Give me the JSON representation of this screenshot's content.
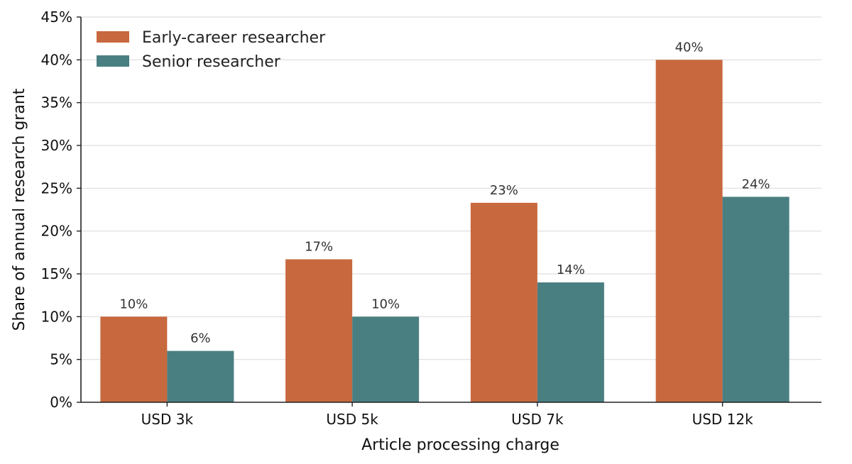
{
  "chart_data": {
    "type": "bar",
    "title": "",
    "xlabel": "Article processing charge",
    "ylabel": "Share of annual research grant",
    "categories": [
      "USD 3k",
      "USD 5k",
      "USD 7k",
      "USD 12k"
    ],
    "series": [
      {
        "name": "Early-career researcher",
        "values": [
          10,
          16.7,
          23.3,
          40
        ],
        "labels": [
          "10%",
          "17%",
          "23%",
          "40%"
        ],
        "color": "#c8683e"
      },
      {
        "name": "Senior researcher",
        "values": [
          6,
          10,
          14,
          24
        ],
        "labels": [
          "6%",
          "10%",
          "14%",
          "24%"
        ],
        "color": "#4a7f82"
      }
    ],
    "ylim": [
      0,
      45
    ],
    "yticks": [
      0,
      5,
      10,
      15,
      20,
      25,
      30,
      35,
      40,
      45
    ],
    "ytick_labels": [
      "0%",
      "5%",
      "10%",
      "15%",
      "20%",
      "25%",
      "30%",
      "35%",
      "40%",
      "45%"
    ],
    "grid": "horizontal",
    "legend_position": "top-left"
  }
}
